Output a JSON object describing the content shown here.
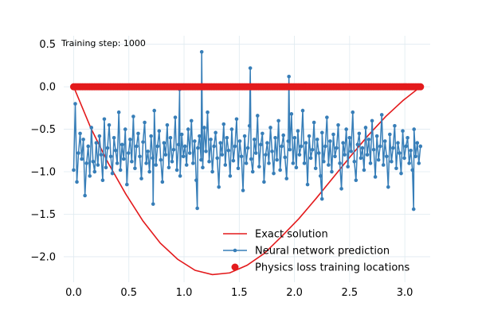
{
  "chart_data": {
    "type": "line",
    "annotation": "Training step: 1000",
    "xlim": [
      -0.09,
      3.23
    ],
    "ylim": [
      -2.3,
      0.6
    ],
    "grid": true,
    "legend_placement": "bottom-right",
    "x_ticks": [
      0.0,
      0.5,
      1.0,
      1.5,
      2.0,
      2.5,
      3.0
    ],
    "x_tick_labels": [
      "0.0",
      "0.5",
      "1.0",
      "1.5",
      "2.0",
      "2.5",
      "3.0"
    ],
    "y_ticks": [
      0.5,
      0.0,
      -0.5,
      -1.0,
      -1.5,
      -2.0
    ],
    "y_tick_labels": [
      "0.5",
      "0.0",
      "−0.5",
      "−1.0",
      "−1.5",
      "−2.0"
    ],
    "series": [
      {
        "name": "Exact solution",
        "kind": "line",
        "color": "#e31a1c",
        "x": [
          0.0,
          0.157,
          0.314,
          0.471,
          0.628,
          0.785,
          0.942,
          1.1,
          1.257,
          1.414,
          1.571,
          1.728,
          1.885,
          2.042,
          2.199,
          2.356,
          2.513,
          2.67,
          2.827,
          2.985,
          3.142
        ],
        "y": [
          0.0,
          -0.49,
          -0.9,
          -1.26,
          -1.58,
          -1.84,
          -2.03,
          -2.16,
          -2.21,
          -2.19,
          -2.1,
          -1.96,
          -1.76,
          -1.55,
          -1.31,
          -1.06,
          -0.81,
          -0.57,
          -0.35,
          -0.16,
          0.0
        ]
      },
      {
        "name": "Neural network prediction",
        "kind": "line-marker",
        "color": "#377eb8",
        "x_start": 0.0,
        "x_end": 3.142,
        "y": [
          -0.98,
          -0.2,
          -1.12,
          -0.78,
          -0.55,
          -0.85,
          -0.62,
          -1.28,
          -0.9,
          -0.7,
          -1.05,
          -0.48,
          -0.88,
          -1.0,
          -0.66,
          -0.92,
          -0.58,
          -0.8,
          -1.1,
          -0.38,
          -0.95,
          -0.72,
          -0.45,
          -0.82,
          -1.02,
          -0.6,
          -0.75,
          -0.9,
          -0.3,
          -0.98,
          -0.68,
          -0.85,
          -0.5,
          -1.15,
          -0.78,
          -0.62,
          -0.88,
          -0.35,
          -0.96,
          -0.7,
          -0.55,
          -0.82,
          -1.08,
          -0.65,
          -0.42,
          -0.9,
          -0.76,
          -1.0,
          -0.58,
          -0.84,
          -0.28,
          -0.92,
          -0.7,
          -0.52,
          -0.86,
          -1.12,
          -0.66,
          -0.8,
          -0.45,
          -0.95,
          -0.6,
          -0.88,
          -0.74,
          -0.36,
          -0.98,
          -0.68,
          -1.05,
          -0.56,
          -0.82,
          -0.7,
          -0.92,
          -0.5,
          -0.78,
          -0.4,
          -0.9,
          -0.64,
          -1.1,
          -0.72,
          -0.58,
          -0.86,
          -0.95,
          -0.48,
          -0.76,
          -0.3,
          -0.88,
          -0.62,
          -1.0,
          -0.7,
          -0.54,
          -0.84,
          -1.18,
          -0.66,
          -0.8,
          -0.44,
          -0.92,
          -0.6,
          -0.75,
          -1.05,
          -0.5,
          -0.87,
          -0.7,
          -0.38,
          -0.96,
          -0.64,
          -0.82,
          -1.22,
          -0.58,
          -0.9,
          -0.72,
          -0.46,
          -0.85,
          -1.0,
          -0.62,
          -0.78,
          -0.34,
          -0.94,
          -0.68,
          -0.55,
          -1.12,
          -0.8,
          -0.66,
          -0.9,
          -0.48,
          -0.76,
          -1.02,
          -0.6,
          -0.86,
          -0.4,
          -0.98,
          -0.7,
          -0.57,
          -0.83,
          -1.08,
          -0.64,
          -0.74,
          -0.32,
          -0.9,
          -0.6,
          -0.95,
          -0.52,
          -0.8,
          -0.7,
          -0.28,
          -0.9,
          -0.66,
          -1.15,
          -0.58,
          -0.84,
          -0.74,
          -0.42,
          -0.96,
          -0.62,
          -0.78,
          -1.05,
          -0.54,
          -0.88,
          -0.7,
          -0.36,
          -0.92,
          -0.64,
          -1.0,
          -0.56,
          -0.82,
          -0.72,
          -0.45,
          -0.9,
          -1.2,
          -0.66,
          -0.8,
          -0.5,
          -0.94,
          -0.6,
          -0.76,
          -0.3,
          -0.88,
          -1.1,
          -0.68,
          -0.55,
          -0.84,
          -0.72,
          -0.98,
          -0.48,
          -0.8,
          -0.62,
          -0.9,
          -0.4,
          -0.74,
          -1.06,
          -0.58,
          -0.86,
          -0.7,
          -0.33,
          -0.92,
          -0.64,
          -0.82,
          -1.18,
          -0.56,
          -0.88,
          -0.72,
          -0.46,
          -0.96,
          -0.66,
          -0.78,
          -1.02,
          -0.52,
          -0.84,
          -0.7,
          -0.6,
          -0.9,
          -0.75,
          -0.98,
          -0.5,
          -0.82,
          -0.66,
          -0.9,
          -0.7
        ],
        "spikes": [
          {
            "x": 0.96,
            "y": -0.03
          },
          {
            "x": 1.16,
            "y": 0.41
          },
          {
            "x": 1.6,
            "y": 0.22
          },
          {
            "x": 1.95,
            "y": 0.12
          },
          {
            "x": 1.12,
            "y": -1.43
          },
          {
            "x": 3.08,
            "y": -1.44
          },
          {
            "x": 0.72,
            "y": -1.38
          },
          {
            "x": 2.25,
            "y": -1.32
          }
        ]
      },
      {
        "name": "Physics loss training locations",
        "kind": "scatter",
        "color": "#e31a1c",
        "x_start": 0.0,
        "x_end": 3.142,
        "count": 200,
        "y_value": 0.0
      }
    ]
  }
}
